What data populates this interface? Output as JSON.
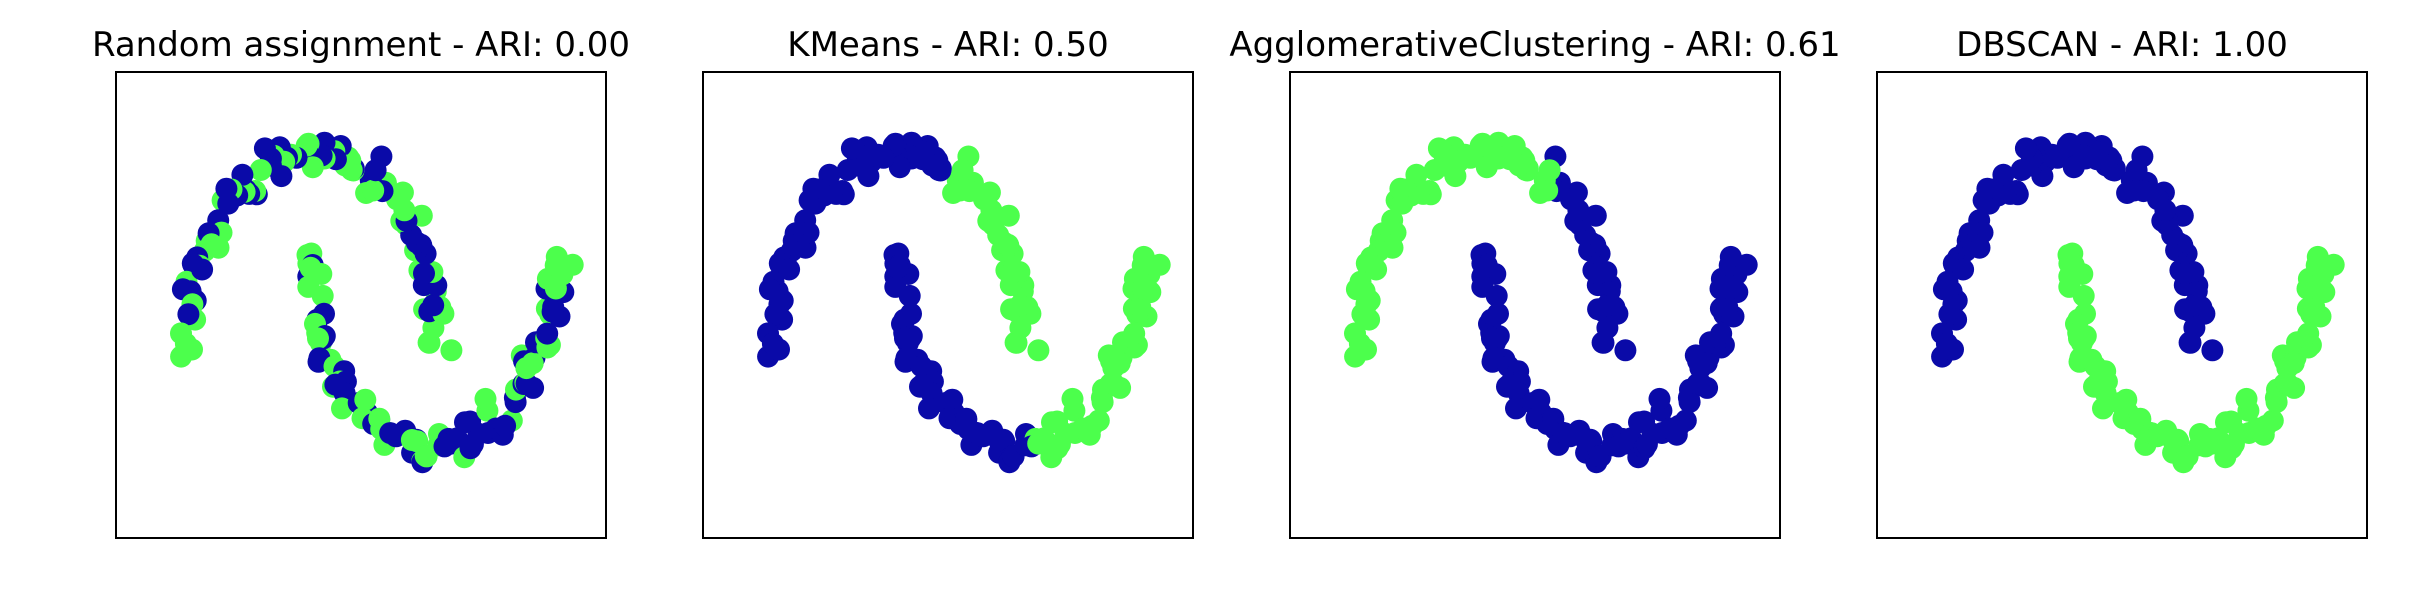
{
  "figure": {
    "background": "#ffffff"
  },
  "colors": {
    "cluster_0": "#0a0aa8",
    "cluster_1": "#4cff4c"
  },
  "chart_data": [
    {
      "type": "scatter",
      "title": "Random assignment - ARI: 0.00",
      "xlabel": "",
      "ylabel": "",
      "grid": false,
      "xticks": [],
      "yticks": [],
      "xlim": [
        -1.6,
        2.4
      ],
      "ylim": [
        -0.95,
        1.4
      ],
      "seed": 11
    },
    {
      "type": "scatter",
      "title": "KMeans - ARI: 0.50",
      "xlabel": "",
      "ylabel": "",
      "grid": false,
      "xticks": [],
      "yticks": [],
      "xlim": [
        -1.6,
        2.4
      ],
      "ylim": [
        -0.95,
        1.4
      ],
      "seed": 23
    },
    {
      "type": "scatter",
      "title": "AgglomerativeClustering - ARI: 0.61",
      "xlabel": "",
      "ylabel": "",
      "grid": false,
      "xticks": [],
      "yticks": [],
      "xlim": [
        -1.6,
        2.4
      ],
      "ylim": [
        -0.95,
        1.4
      ],
      "seed": 37
    },
    {
      "type": "scatter",
      "title": "DBSCAN - ARI: 1.00",
      "xlabel": "",
      "ylabel": "",
      "grid": false,
      "xticks": [],
      "yticks": [],
      "xlim": [
        -1.6,
        2.4
      ],
      "ylim": [
        -0.95,
        1.4
      ],
      "seed": 51
    }
  ]
}
